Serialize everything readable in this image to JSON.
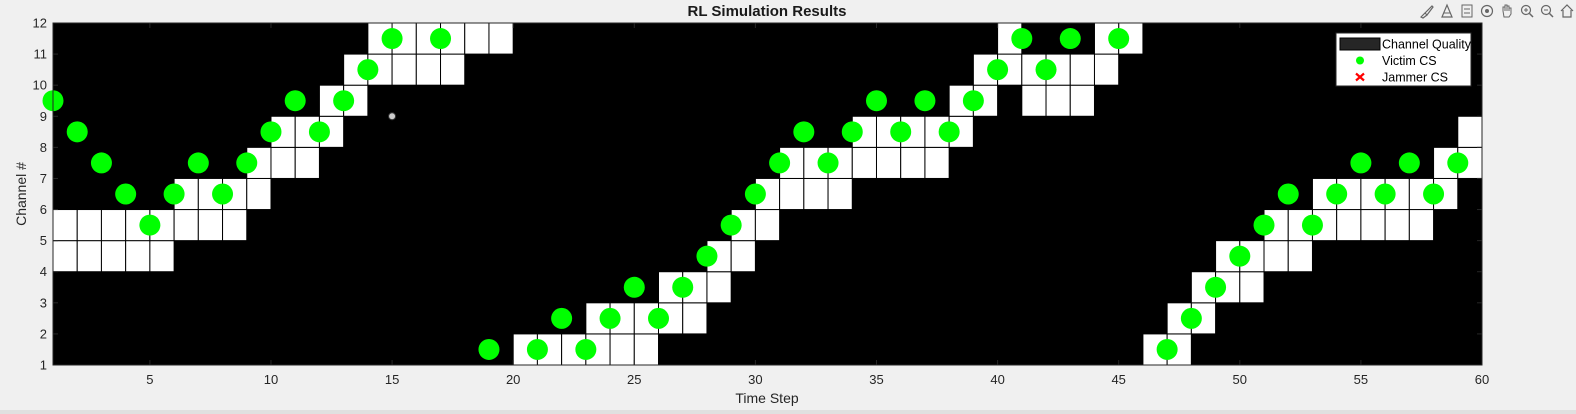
{
  "toolbar": {
    "items": [
      {
        "icon": "brush-icon"
      },
      {
        "icon": "datatip-icon"
      },
      {
        "icon": "colorbar-icon"
      },
      {
        "icon": "rotate3d-icon"
      },
      {
        "icon": "pan-icon"
      },
      {
        "icon": "zoom-in-icon"
      },
      {
        "icon": "zoom-out-icon"
      },
      {
        "icon": "home-icon"
      }
    ]
  },
  "chart_data": {
    "type": "scatter",
    "title": "RL Simulation Results",
    "xlabel": "Time Step",
    "ylabel": "Channel #",
    "xlim": [
      1,
      60
    ],
    "ylim": [
      1,
      12
    ],
    "xticks": [
      5,
      10,
      15,
      20,
      25,
      30,
      35,
      40,
      45,
      50,
      55,
      60
    ],
    "yticks": [
      1,
      2,
      3,
      4,
      5,
      6,
      7,
      8,
      9,
      10,
      11,
      12
    ],
    "grid": false,
    "background": "#000000",
    "legend": {
      "placement": "top-right",
      "entries": [
        {
          "name": "Channel Quality",
          "color": "#262626",
          "marker": "patch"
        },
        {
          "name": "Victim CS",
          "color": "#00ff00",
          "marker": "circle"
        },
        {
          "name": "Jammer CS",
          "color": "#ff0000",
          "marker": "x"
        }
      ]
    },
    "channel_quality_cells": [
      [
        1,
        4
      ],
      [
        1,
        5
      ],
      [
        2,
        4
      ],
      [
        2,
        5
      ],
      [
        3,
        4
      ],
      [
        3,
        5
      ],
      [
        4,
        4
      ],
      [
        4,
        5
      ],
      [
        5,
        4
      ],
      [
        5,
        5
      ],
      [
        6,
        5
      ],
      [
        6,
        6
      ],
      [
        7,
        5
      ],
      [
        7,
        6
      ],
      [
        8,
        5
      ],
      [
        8,
        6
      ],
      [
        9,
        6
      ],
      [
        9,
        7
      ],
      [
        10,
        7
      ],
      [
        10,
        8
      ],
      [
        11,
        7
      ],
      [
        11,
        8
      ],
      [
        12,
        8
      ],
      [
        12,
        9
      ],
      [
        13,
        9
      ],
      [
        13,
        10
      ],
      [
        14,
        10
      ],
      [
        14,
        11
      ],
      [
        15,
        10
      ],
      [
        15,
        11
      ],
      [
        16,
        10
      ],
      [
        16,
        11
      ],
      [
        17,
        10
      ],
      [
        17,
        11
      ],
      [
        18,
        11
      ],
      [
        19,
        11
      ],
      [
        20,
        1
      ],
      [
        21,
        1
      ],
      [
        22,
        1
      ],
      [
        23,
        1
      ],
      [
        23,
        2
      ],
      [
        24,
        1
      ],
      [
        24,
        2
      ],
      [
        25,
        1
      ],
      [
        25,
        2
      ],
      [
        26,
        2
      ],
      [
        26,
        3
      ],
      [
        27,
        2
      ],
      [
        27,
        3
      ],
      [
        28,
        3
      ],
      [
        28,
        4
      ],
      [
        29,
        4
      ],
      [
        29,
        5
      ],
      [
        30,
        5
      ],
      [
        30,
        6
      ],
      [
        31,
        6
      ],
      [
        31,
        7
      ],
      [
        32,
        6
      ],
      [
        32,
        7
      ],
      [
        33,
        6
      ],
      [
        33,
        7
      ],
      [
        34,
        7
      ],
      [
        34,
        8
      ],
      [
        35,
        7
      ],
      [
        35,
        8
      ],
      [
        36,
        7
      ],
      [
        36,
        8
      ],
      [
        37,
        7
      ],
      [
        37,
        8
      ],
      [
        38,
        8
      ],
      [
        38,
        9
      ],
      [
        39,
        9
      ],
      [
        39,
        10
      ],
      [
        40,
        10
      ],
      [
        40,
        11
      ],
      [
        41,
        9
      ],
      [
        41,
        10
      ],
      [
        42,
        9
      ],
      [
        42,
        10
      ],
      [
        43,
        9
      ],
      [
        43,
        10
      ],
      [
        44,
        10
      ],
      [
        44,
        11
      ],
      [
        45,
        11
      ],
      [
        46,
        1
      ],
      [
        47,
        1
      ],
      [
        47,
        2
      ],
      [
        48,
        2
      ],
      [
        48,
        3
      ],
      [
        49,
        3
      ],
      [
        49,
        4
      ],
      [
        50,
        3
      ],
      [
        50,
        4
      ],
      [
        51,
        4
      ],
      [
        51,
        5
      ],
      [
        52,
        4
      ],
      [
        52,
        5
      ],
      [
        53,
        5
      ],
      [
        53,
        6
      ],
      [
        54,
        5
      ],
      [
        54,
        6
      ],
      [
        55,
        5
      ],
      [
        55,
        6
      ],
      [
        56,
        5
      ],
      [
        56,
        6
      ],
      [
        57,
        5
      ],
      [
        57,
        6
      ],
      [
        58,
        6
      ],
      [
        58,
        7
      ],
      [
        59,
        7
      ],
      [
        59,
        8
      ]
    ],
    "series": [
      {
        "name": "Victim CS",
        "color": "#00ff00",
        "points": [
          [
            1,
            9.5
          ],
          [
            2,
            8.5
          ],
          [
            3,
            7.5
          ],
          [
            4,
            6.5
          ],
          [
            5,
            5.5
          ],
          [
            6,
            6.5
          ],
          [
            7,
            7.5
          ],
          [
            8,
            6.5
          ],
          [
            9,
            7.5
          ],
          [
            10,
            8.5
          ],
          [
            11,
            9.5
          ],
          [
            12,
            8.5
          ],
          [
            13,
            9.5
          ],
          [
            14,
            10.5
          ],
          [
            15,
            11.5
          ],
          [
            17,
            11.5
          ],
          [
            19,
            1.5
          ],
          [
            21,
            1.5
          ],
          [
            22,
            2.5
          ],
          [
            23,
            1.5
          ],
          [
            24,
            2.5
          ],
          [
            25,
            3.5
          ],
          [
            26,
            2.5
          ],
          [
            27,
            3.5
          ],
          [
            28,
            4.5
          ],
          [
            29,
            5.5
          ],
          [
            30,
            6.5
          ],
          [
            31,
            7.5
          ],
          [
            32,
            8.5
          ],
          [
            33,
            7.5
          ],
          [
            34,
            8.5
          ],
          [
            35,
            9.5
          ],
          [
            36,
            8.5
          ],
          [
            37,
            9.5
          ],
          [
            38,
            8.5
          ],
          [
            39,
            9.5
          ],
          [
            40,
            10.5
          ],
          [
            41,
            11.5
          ],
          [
            42,
            10.5
          ],
          [
            43,
            11.5
          ],
          [
            45,
            11.5
          ],
          [
            47,
            1.5
          ],
          [
            48,
            2.5
          ],
          [
            49,
            3.5
          ],
          [
            50,
            4.5
          ],
          [
            51,
            5.5
          ],
          [
            52,
            6.5
          ],
          [
            53,
            5.5
          ],
          [
            54,
            6.5
          ],
          [
            55,
            7.5
          ],
          [
            56,
            6.5
          ],
          [
            57,
            7.5
          ],
          [
            58,
            6.5
          ],
          [
            59,
            7.5
          ]
        ]
      },
      {
        "name": "Jammer CS",
        "color": "#ff0000",
        "points": []
      }
    ],
    "extra_markers": [
      {
        "x": 15,
        "y": 9,
        "color": "#cccccc"
      }
    ]
  }
}
